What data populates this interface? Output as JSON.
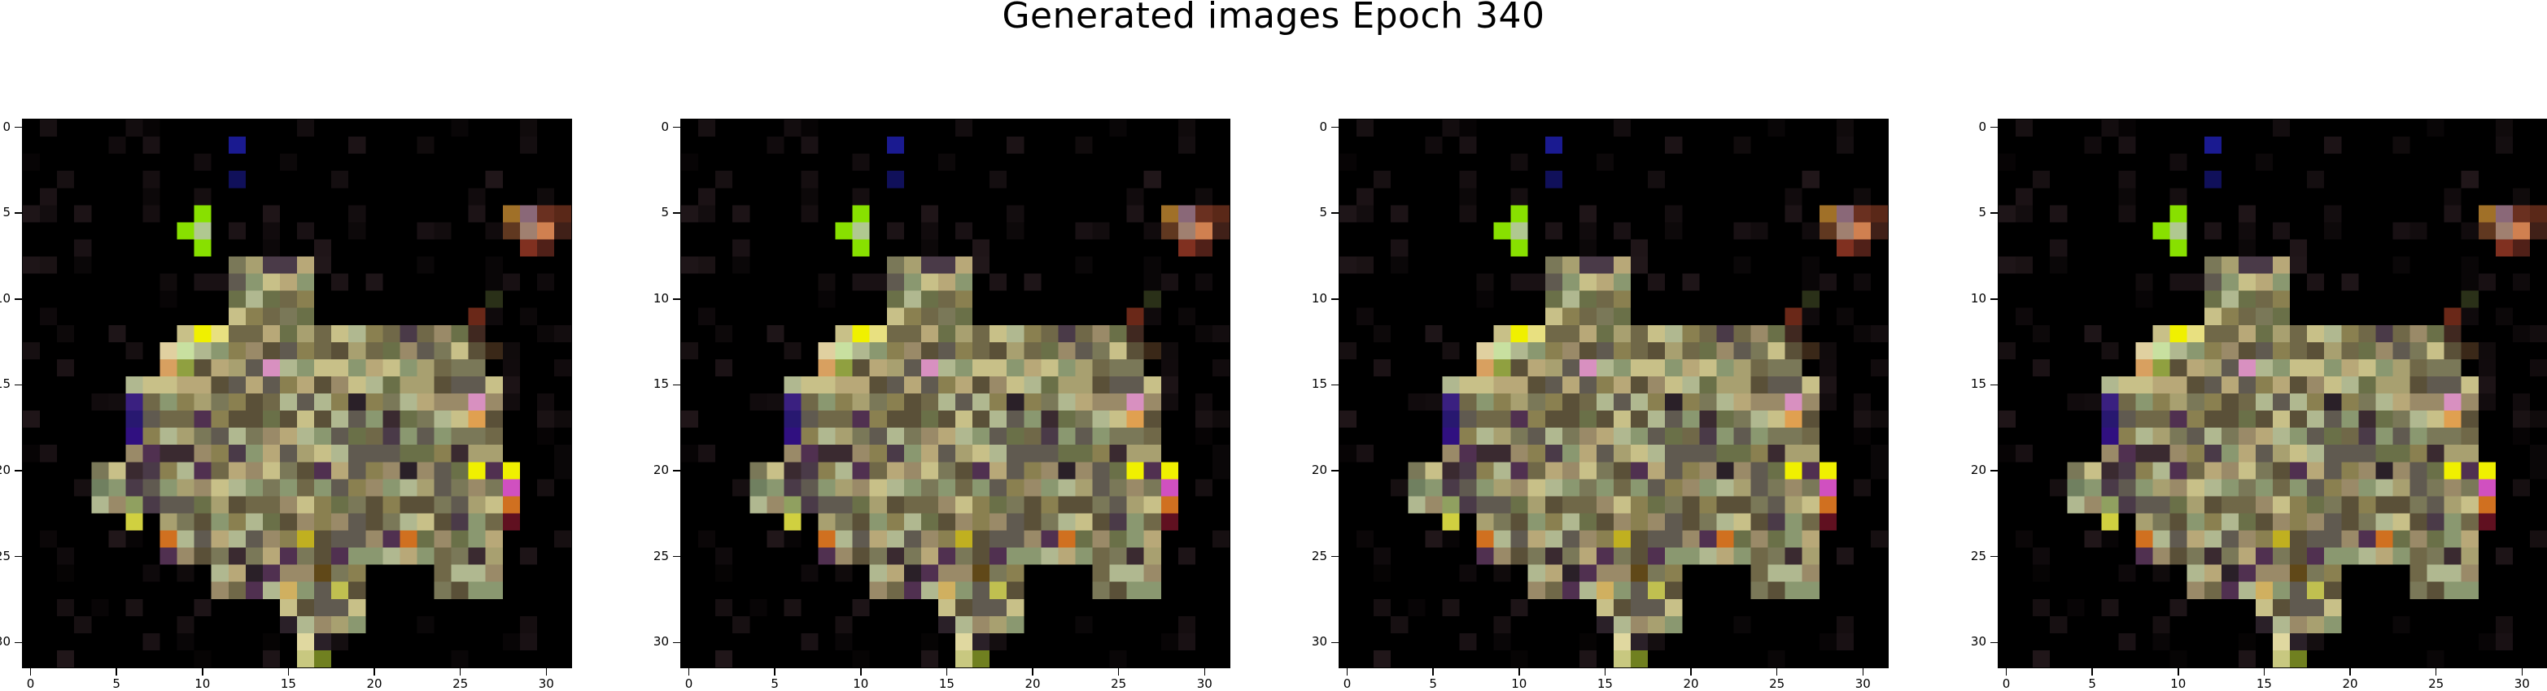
{
  "figure": {
    "title": "Generated images Epoch 340"
  },
  "image_data": {
    "grid_size": 32,
    "x_ticks": [
      "0",
      "5",
      "10",
      "15",
      "20",
      "25",
      "30"
    ],
    "y_ticks": [
      "0",
      "5",
      "10",
      "15",
      "20",
      "25",
      "30"
    ],
    "panel_count": 4,
    "colors": {
      "background": "#000000",
      "olive": "#a8a070",
      "sage": "#8a9870",
      "tan": "#b8a878",
      "khaki": "#c8c088",
      "dark_olive": "#5a5038",
      "moss": "#6a7048",
      "lime": "#88e000",
      "yellow": "#f0f000",
      "magenta": "#d050c0",
      "orange": "#d07020",
      "navy": "#1a1a90",
      "pink": "#d890c0",
      "indigo": "#301080",
      "maroon": "#601020"
    }
  }
}
